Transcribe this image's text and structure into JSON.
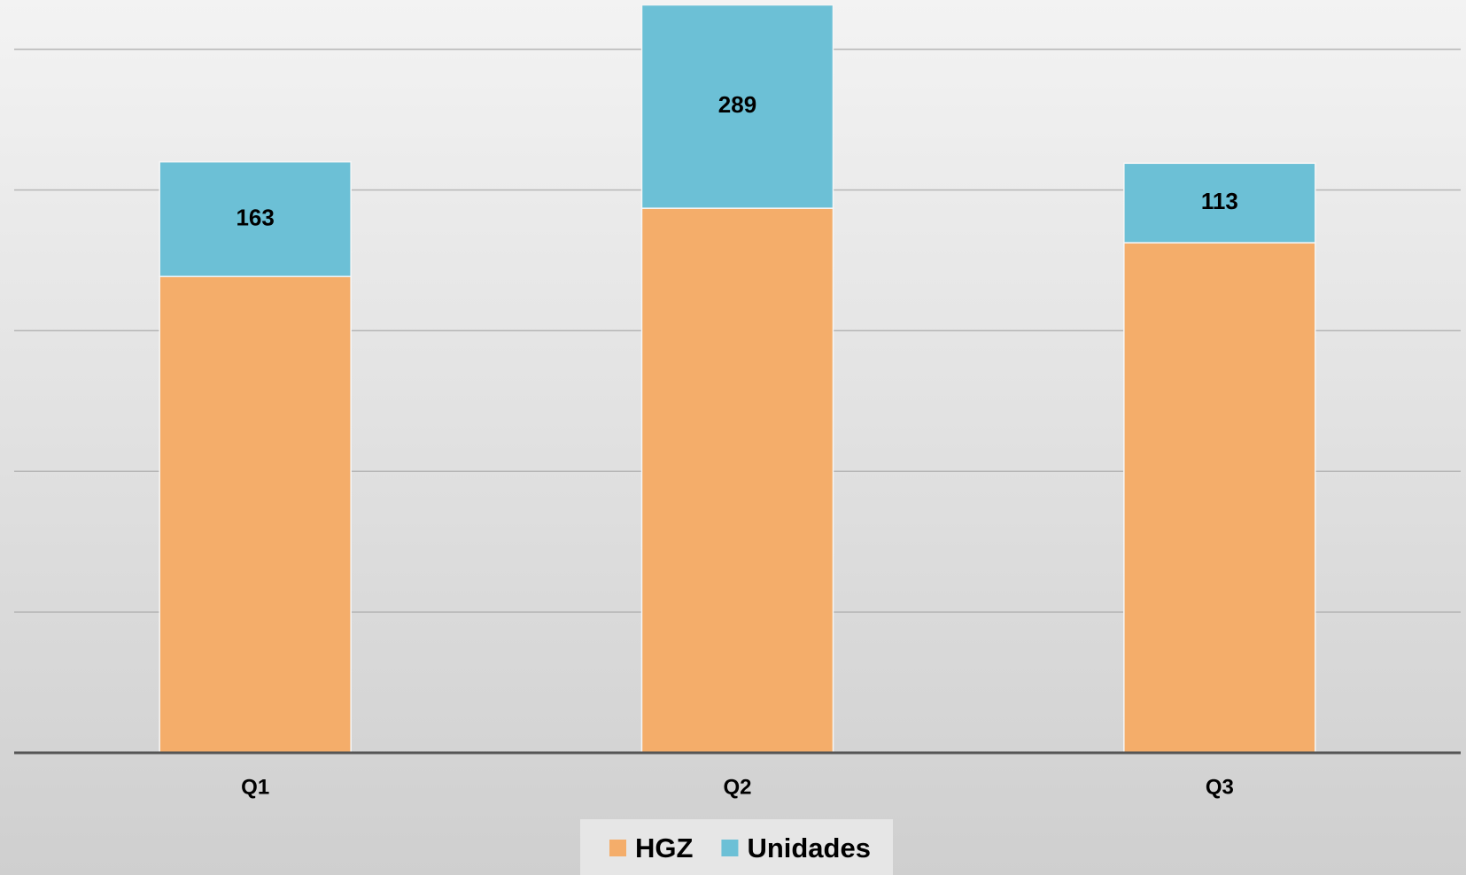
{
  "chart_data": {
    "type": "stacked_bar",
    "categories": [
      "Q1",
      "Q2",
      "Q3"
    ],
    "series": [
      {
        "name": "HGZ",
        "color": "#f4ad6a",
        "values": [
          677,
          774,
          725
        ],
        "data_labels": false
      },
      {
        "name": "Unidades",
        "color": "#6cc0d6",
        "values": [
          163,
          289,
          113
        ],
        "data_labels": true
      }
    ],
    "ylim": [
      0,
      1070
    ],
    "yticks": [
      0,
      200,
      400,
      600,
      800,
      1000
    ],
    "grid": true,
    "legend": "bottom"
  }
}
